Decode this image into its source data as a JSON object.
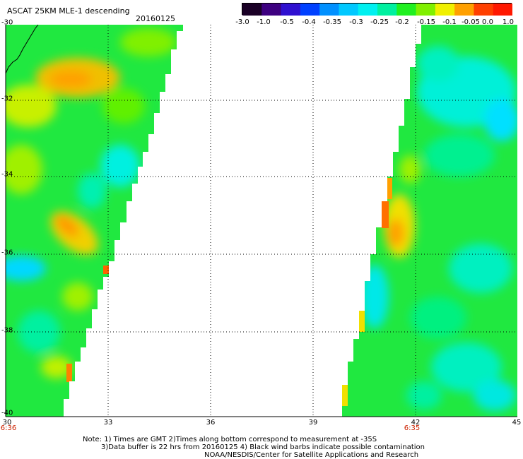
{
  "header": {
    "title": "ASCAT 25KM MLE-1 descending",
    "date": "20160125"
  },
  "colorbar": {
    "labels": [
      "-3.0",
      "-1.0",
      "-0.5",
      "-0.4",
      "-0.35",
      "-0.3",
      "-0.25",
      "-0.2",
      "-0.15",
      "-0.1",
      "-0.05",
      "0.0",
      "1.0"
    ],
    "colors": [
      "#1a0026",
      "#3d0080",
      "#2f10d0",
      "#0040ff",
      "#0090ff",
      "#00c8ff",
      "#00f0f0",
      "#00f0a0",
      "#20f020",
      "#80f000",
      "#f0f000",
      "#ffa000",
      "#ff4000",
      "#ff1800"
    ]
  },
  "map": {
    "lat_labels": [
      "-30",
      "-32",
      "-34",
      "-36",
      "-38",
      "-40"
    ],
    "lon_labels": [
      "30",
      "33",
      "36",
      "39",
      "42",
      "45"
    ],
    "time_labels": [
      "6:36",
      "6:35"
    ],
    "lat_range": [
      -40,
      -30
    ],
    "lon_range": [
      30,
      45
    ]
  },
  "notes": {
    "line1": "Note: 1) Times are GMT 2)Times along bottom correspond to measurement at -35S",
    "line2": "3)Data buffer is 22 hrs from 20160125 4) Black wind barbs indicate possible contamination",
    "line3": "NOAA/NESDIS/Center for Satellite Applications and Research"
  }
}
